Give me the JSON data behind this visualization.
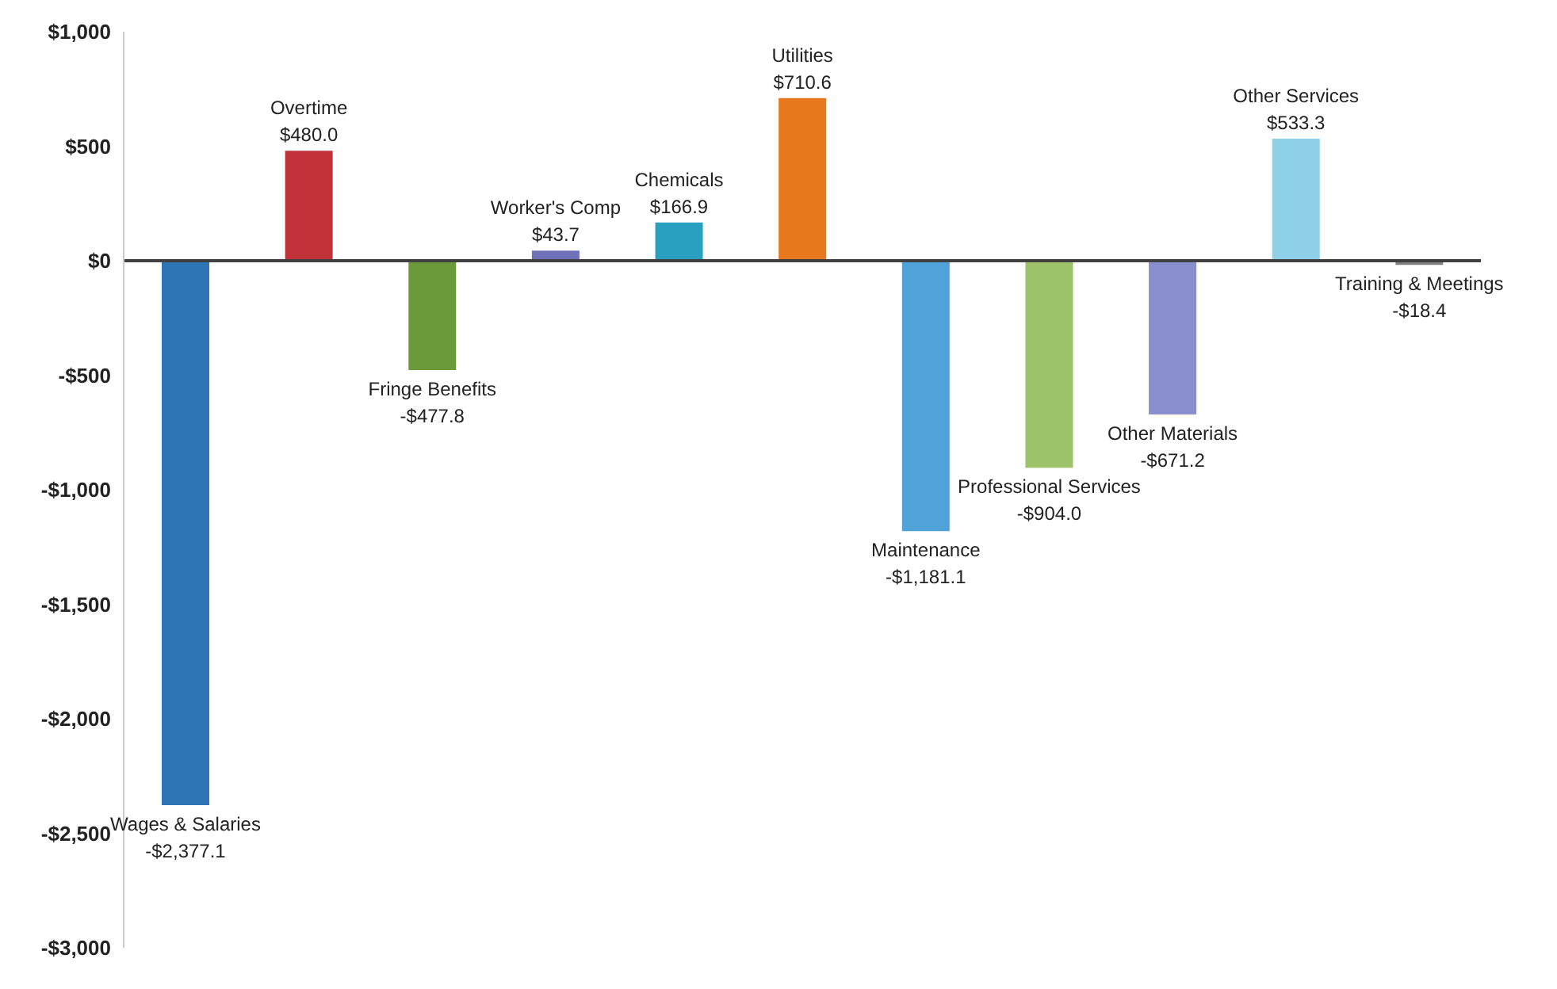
{
  "chart_data": {
    "type": "bar",
    "categories": [
      "Wages & Salaries",
      "Overtime",
      "Fringe Benefits",
      "Worker's Comp",
      "Chemicals",
      "Utilities",
      "Maintenance",
      "Professional Services",
      "Other Materials",
      "Other Services",
      "Training & Meetings"
    ],
    "values": [
      -2377.1,
      480.0,
      -477.8,
      43.7,
      166.9,
      710.6,
      -1181.1,
      -904.0,
      -671.2,
      533.3,
      -18.4
    ],
    "value_labels": [
      "-$2,377.1",
      "$480.0",
      "-$477.8",
      "$43.7",
      "$166.9",
      "$710.6",
      "-$1,181.1",
      "-$904.0",
      "-$671.2",
      "$533.3",
      "-$18.4"
    ],
    "colors": [
      "#2e75b6",
      "#c0313a",
      "#6a9a3a",
      "#6f72b8",
      "#2aa0c0",
      "#e8781e",
      "#4fa3d8",
      "#9cc26a",
      "#8a8fcf",
      "#8dd0e8",
      "#7f7f7f"
    ],
    "ylim": [
      -3000,
      1000
    ],
    "yticks": [
      {
        "value": 1000,
        "label": "$1,000"
      },
      {
        "value": 500,
        "label": "$500"
      },
      {
        "value": 0,
        "label": "$0"
      },
      {
        "value": -500,
        "label": "-$500"
      },
      {
        "value": -1000,
        "label": "-$1,000"
      },
      {
        "value": -1500,
        "label": "-$1,500"
      },
      {
        "value": -2000,
        "label": "-$2,000"
      },
      {
        "value": -2500,
        "label": "-$2,500"
      },
      {
        "value": -3000,
        "label": "-$3,000"
      }
    ],
    "ref_lines": [
      {
        "axis": "y",
        "value": 0,
        "color": "#404040"
      }
    ],
    "tick_labels": "y",
    "grid": false
  }
}
